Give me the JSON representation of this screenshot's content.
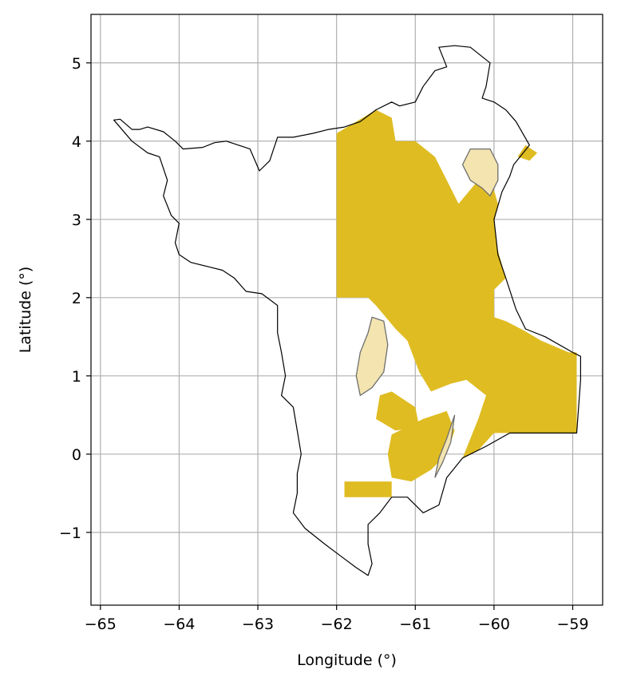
{
  "map": {
    "xlabel": "Longitude (°)",
    "ylabel": "Latitude (°)",
    "xlim": [
      -65.12,
      -58.62
    ],
    "ylim": [
      -1.93,
      5.62
    ],
    "x_ticks": [
      {
        "value": -65,
        "label": "−65"
      },
      {
        "value": -64,
        "label": "−64"
      },
      {
        "value": -63,
        "label": "−63"
      },
      {
        "value": -62,
        "label": "−62"
      },
      {
        "value": -61,
        "label": "−61"
      },
      {
        "value": -60,
        "label": "−60"
      },
      {
        "value": -59,
        "label": "−59"
      }
    ],
    "y_ticks": [
      {
        "value": -1,
        "label": "−1"
      },
      {
        "value": 0,
        "label": "0"
      },
      {
        "value": 1,
        "label": "1"
      },
      {
        "value": 2,
        "label": "2"
      },
      {
        "value": 3,
        "label": "3"
      },
      {
        "value": 4,
        "label": "4"
      },
      {
        "value": 5,
        "label": "5"
      }
    ],
    "grid": true,
    "colors": {
      "boundary": "#000000",
      "concession_fill": "#dfbc22",
      "protected_fill": "#f3e4b0",
      "protected_edge": "#6e6e6e",
      "grid": "#b0b0b0"
    },
    "boundary": [
      [
        -64.83,
        4.27
      ],
      [
        -64.75,
        4.28
      ],
      [
        -64.6,
        4.15
      ],
      [
        -64.5,
        4.15
      ],
      [
        -64.4,
        4.18
      ],
      [
        -64.2,
        4.12
      ],
      [
        -64.05,
        4.0
      ],
      [
        -63.95,
        3.9
      ],
      [
        -63.7,
        3.92
      ],
      [
        -63.55,
        3.98
      ],
      [
        -63.4,
        4.0
      ],
      [
        -63.25,
        3.95
      ],
      [
        -63.1,
        3.9
      ],
      [
        -62.98,
        3.62
      ],
      [
        -62.85,
        3.75
      ],
      [
        -62.75,
        4.05
      ],
      [
        -62.55,
        4.05
      ],
      [
        -62.3,
        4.1
      ],
      [
        -62.1,
        4.15
      ],
      [
        -61.9,
        4.18
      ],
      [
        -61.7,
        4.25
      ],
      [
        -61.5,
        4.4
      ],
      [
        -61.3,
        4.5
      ],
      [
        -61.2,
        4.45
      ],
      [
        -61.0,
        4.5
      ],
      [
        -60.9,
        4.7
      ],
      [
        -60.75,
        4.9
      ],
      [
        -60.6,
        4.95
      ],
      [
        -60.7,
        5.2
      ],
      [
        -60.5,
        5.22
      ],
      [
        -60.3,
        5.2
      ],
      [
        -60.05,
        5.0
      ],
      [
        -60.1,
        4.7
      ],
      [
        -60.15,
        4.55
      ],
      [
        -60.0,
        4.5
      ],
      [
        -59.85,
        4.4
      ],
      [
        -59.72,
        4.25
      ],
      [
        -59.55,
        3.95
      ],
      [
        -59.75,
        3.7
      ],
      [
        -59.8,
        3.55
      ],
      [
        -59.9,
        3.35
      ],
      [
        -60.0,
        3.0
      ],
      [
        -59.95,
        2.55
      ],
      [
        -59.85,
        2.25
      ],
      [
        -59.72,
        1.85
      ],
      [
        -59.6,
        1.6
      ],
      [
        -59.35,
        1.5
      ],
      [
        -59.0,
        1.3
      ],
      [
        -58.9,
        1.25
      ],
      [
        -58.9,
        0.95
      ],
      [
        -58.95,
        0.27
      ],
      [
        -59.8,
        0.27
      ],
      [
        -60.1,
        0.1
      ],
      [
        -60.4,
        -0.05
      ],
      [
        -60.6,
        -0.3
      ],
      [
        -60.7,
        -0.65
      ],
      [
        -60.9,
        -0.75
      ],
      [
        -61.1,
        -0.55
      ],
      [
        -61.3,
        -0.55
      ],
      [
        -61.45,
        -0.75
      ],
      [
        -61.6,
        -0.9
      ],
      [
        -61.6,
        -1.15
      ],
      [
        -61.55,
        -1.4
      ],
      [
        -61.6,
        -1.55
      ],
      [
        -61.75,
        -1.45
      ],
      [
        -61.95,
        -1.3
      ],
      [
        -62.15,
        -1.15
      ],
      [
        -62.4,
        -0.95
      ],
      [
        -62.55,
        -0.75
      ],
      [
        -62.5,
        -0.5
      ],
      [
        -62.5,
        -0.25
      ],
      [
        -62.45,
        0.0
      ],
      [
        -62.5,
        0.3
      ],
      [
        -62.55,
        0.6
      ],
      [
        -62.7,
        0.75
      ],
      [
        -62.65,
        1.0
      ],
      [
        -62.7,
        1.3
      ],
      [
        -62.75,
        1.55
      ],
      [
        -62.75,
        1.9
      ],
      [
        -62.95,
        2.05
      ],
      [
        -63.15,
        2.08
      ],
      [
        -63.3,
        2.25
      ],
      [
        -63.45,
        2.35
      ],
      [
        -63.65,
        2.4
      ],
      [
        -63.85,
        2.45
      ],
      [
        -64.0,
        2.55
      ],
      [
        -64.05,
        2.7
      ],
      [
        -64.0,
        2.95
      ],
      [
        -64.1,
        3.05
      ],
      [
        -64.2,
        3.3
      ],
      [
        -64.15,
        3.5
      ],
      [
        -64.25,
        3.8
      ],
      [
        -64.4,
        3.85
      ],
      [
        -64.6,
        4.0
      ],
      [
        -64.83,
        4.27
      ]
    ],
    "concessions": [
      [
        [
          -62.0,
          4.1
        ],
        [
          -61.5,
          4.4
        ],
        [
          -61.3,
          4.3
        ],
        [
          -61.25,
          4.0
        ],
        [
          -61.0,
          4.0
        ],
        [
          -60.75,
          3.8
        ],
        [
          -60.65,
          3.6
        ],
        [
          -60.55,
          3.4
        ],
        [
          -60.45,
          3.2
        ],
        [
          -60.2,
          3.5
        ],
        [
          -60.05,
          3.55
        ],
        [
          -59.95,
          3.2
        ],
        [
          -60.0,
          2.95
        ],
        [
          -59.95,
          2.6
        ],
        [
          -59.85,
          2.25
        ],
        [
          -60.0,
          2.1
        ],
        [
          -60.0,
          1.75
        ],
        [
          -59.85,
          1.7
        ],
        [
          -59.62,
          1.58
        ],
        [
          -59.4,
          1.45
        ],
        [
          -59.05,
          1.3
        ],
        [
          -58.95,
          1.3
        ],
        [
          -58.95,
          0.27
        ],
        [
          -60.0,
          0.27
        ],
        [
          -60.2,
          0.05
        ],
        [
          -60.4,
          -0.05
        ],
        [
          -60.2,
          0.45
        ],
        [
          -60.1,
          0.75
        ],
        [
          -60.35,
          0.95
        ],
        [
          -60.55,
          0.9
        ],
        [
          -60.8,
          0.8
        ],
        [
          -60.95,
          1.05
        ],
        [
          -61.1,
          1.45
        ],
        [
          -61.25,
          1.6
        ],
        [
          -61.5,
          1.9
        ],
        [
          -61.6,
          2.0
        ],
        [
          -62.0,
          2.0
        ],
        [
          -62.0,
          4.1
        ]
      ],
      [
        [
          -61.3,
          -0.55
        ],
        [
          -61.9,
          -0.55
        ],
        [
          -61.9,
          -0.35
        ],
        [
          -61.3,
          -0.35
        ],
        [
          -61.3,
          -0.55
        ]
      ],
      [
        [
          -61.3,
          0.8
        ],
        [
          -61.0,
          0.6
        ],
        [
          -60.95,
          0.35
        ],
        [
          -61.25,
          0.3
        ],
        [
          -61.5,
          0.45
        ],
        [
          -61.45,
          0.75
        ],
        [
          -61.3,
          0.8
        ]
      ],
      [
        [
          -61.3,
          0.25
        ],
        [
          -60.9,
          0.45
        ],
        [
          -60.6,
          0.55
        ],
        [
          -60.5,
          0.3
        ],
        [
          -60.6,
          0.0
        ],
        [
          -60.8,
          -0.2
        ],
        [
          -61.05,
          -0.35
        ],
        [
          -61.3,
          -0.3
        ],
        [
          -61.35,
          0.0
        ],
        [
          -61.3,
          0.25
        ]
      ],
      [
        [
          -59.6,
          3.95
        ],
        [
          -59.45,
          3.85
        ],
        [
          -59.55,
          3.75
        ],
        [
          -59.7,
          3.8
        ],
        [
          -59.6,
          3.95
        ]
      ]
    ],
    "protected_areas": [
      [
        [
          -60.05,
          3.9
        ],
        [
          -60.3,
          3.9
        ],
        [
          -60.4,
          3.7
        ],
        [
          -60.3,
          3.5
        ],
        [
          -60.15,
          3.4
        ],
        [
          -60.05,
          3.3
        ],
        [
          -59.95,
          3.5
        ],
        [
          -59.95,
          3.7
        ],
        [
          -60.05,
          3.9
        ]
      ],
      [
        [
          -61.55,
          1.75
        ],
        [
          -61.4,
          1.7
        ],
        [
          -61.35,
          1.4
        ],
        [
          -61.4,
          1.05
        ],
        [
          -61.55,
          0.85
        ],
        [
          -61.7,
          0.75
        ],
        [
          -61.75,
          1.0
        ],
        [
          -61.7,
          1.3
        ],
        [
          -61.6,
          1.55
        ],
        [
          -61.55,
          1.75
        ]
      ],
      [
        [
          -60.5,
          0.5
        ],
        [
          -60.6,
          0.2
        ],
        [
          -60.7,
          -0.05
        ],
        [
          -60.75,
          -0.3
        ],
        [
          -60.65,
          -0.1
        ],
        [
          -60.55,
          0.15
        ],
        [
          -60.5,
          0.5
        ]
      ]
    ]
  }
}
